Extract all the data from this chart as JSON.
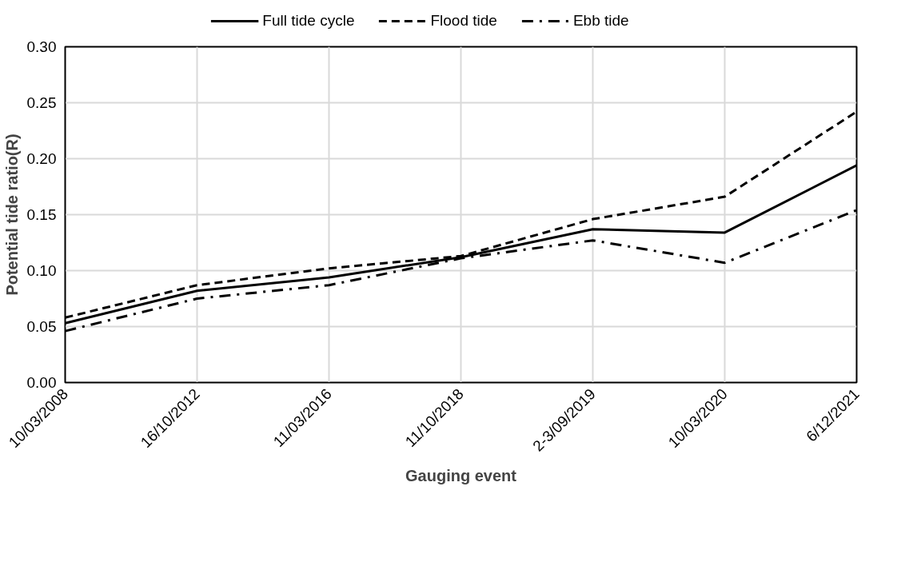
{
  "chart_data": {
    "type": "line",
    "xlabel": "Gauging event",
    "ylabel": "Potential tide ratio(R)",
    "categories": [
      "10/03/2008",
      "16/10/2012",
      "11/03/2016",
      "11/10/2018",
      "2-3/09/2019",
      "10/03/2020",
      "6/12/2021"
    ],
    "series": [
      {
        "name": "Full tide cycle",
        "color": "#000000",
        "line_style": "solid",
        "values": [
          0.053,
          0.082,
          0.094,
          0.112,
          0.137,
          0.134,
          0.194
        ]
      },
      {
        "name": "Flood tide",
        "color": "#000000",
        "line_style": "dashed",
        "values": [
          0.058,
          0.087,
          0.102,
          0.113,
          0.146,
          0.166,
          0.242
        ]
      },
      {
        "name": "Ebb tide",
        "color": "#000000",
        "line_style": "dashdot",
        "values": [
          0.046,
          0.075,
          0.087,
          0.111,
          0.127,
          0.107,
          0.154
        ]
      }
    ],
    "ylim": [
      0,
      0.3
    ],
    "yticks": [
      {
        "value": 0,
        "label": "0.00"
      },
      {
        "value": 0.05,
        "label": "0.05"
      },
      {
        "value": 0.1,
        "label": "0.10"
      },
      {
        "value": 0.15,
        "label": "0.15"
      },
      {
        "value": 0.2,
        "label": "0.20"
      },
      {
        "value": 0.25,
        "label": "0.25"
      },
      {
        "value": 0.3,
        "label": "0.30"
      }
    ],
    "grid": true,
    "legend": "top",
    "marker": "none"
  }
}
